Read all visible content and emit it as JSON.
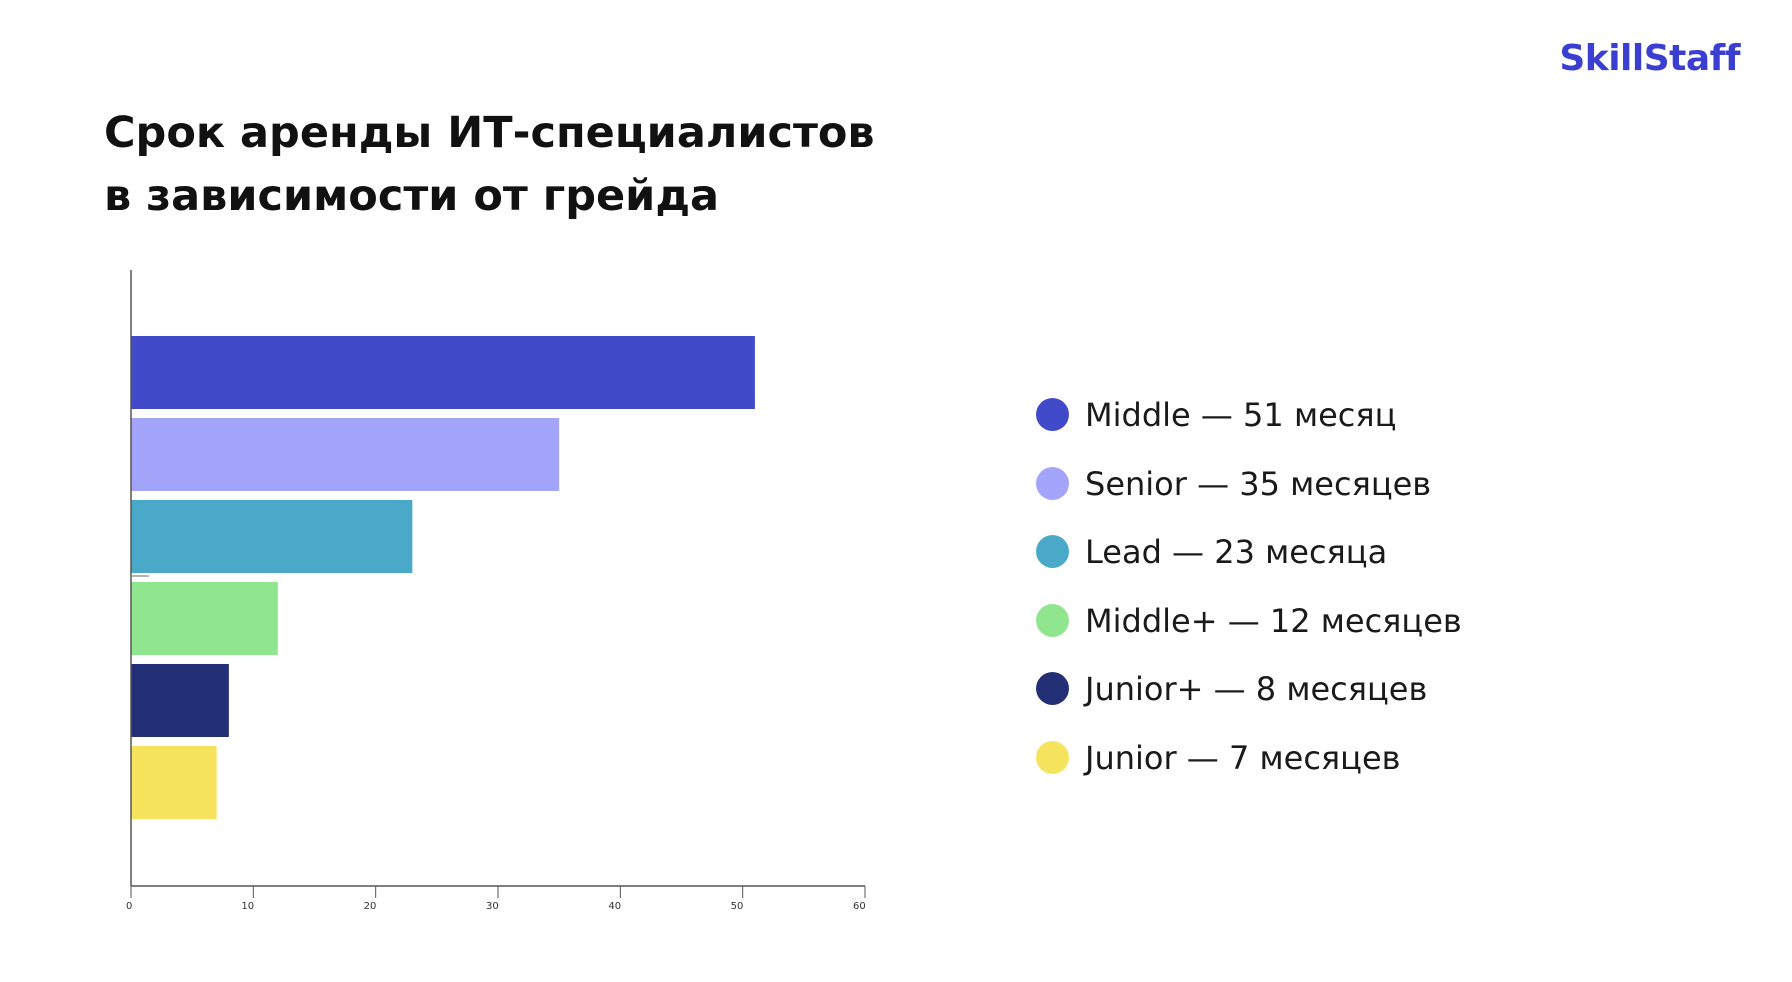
{
  "brand": "SkillStaff",
  "title_lines": [
    "Срок аренды ИТ-специалистов",
    "в зависимости от грейда"
  ],
  "colors": {
    "brand": "#3b3fd1",
    "axis": "#555555"
  },
  "legend": [
    {
      "label": "Middle — 51 месяц",
      "color": "#414bc9"
    },
    {
      "label": "Senior — 35 месяцев",
      "color": "#a3a5fa"
    },
    {
      "label": "Lead — 23 месяца",
      "color": "#4aa9c8"
    },
    {
      "label": "Middle+ — 12 месяцев",
      "color": "#90e68e"
    },
    {
      "label": "Junior+ — 8 месяцев",
      "color": "#243075"
    },
    {
      "label": "Junior — 7 месяцев",
      "color": "#f7e45e"
    }
  ],
  "chart_data": {
    "type": "bar",
    "orientation": "horizontal",
    "categories": [
      "Middle",
      "Senior",
      "Lead",
      "Middle+",
      "Junior+",
      "Junior"
    ],
    "values": [
      51,
      35,
      23,
      12,
      8,
      7
    ],
    "colors": [
      "#414bc9",
      "#a3a5fa",
      "#4aa9c8",
      "#90e68e",
      "#243075",
      "#f7e45e"
    ],
    "xlim": [
      0,
      60
    ],
    "xticks": [
      0,
      10,
      20,
      30,
      40,
      50,
      60
    ],
    "grid": false,
    "legend_position": "right"
  }
}
